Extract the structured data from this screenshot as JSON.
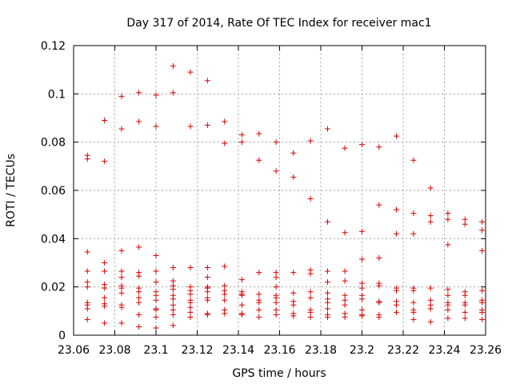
{
  "chart_data": {
    "type": "scatter",
    "title": "Day 317 of 2014, Rate Of TEC Index for receiver mac1",
    "xlabel": "GPS time / hours",
    "ylabel": "ROTI / TECUs",
    "xlim": [
      23.06,
      23.26
    ],
    "ylim": [
      0,
      0.12
    ],
    "x_ticks": [
      23.06,
      23.08,
      23.1,
      23.12,
      23.14,
      23.16,
      23.18,
      23.2,
      23.22,
      23.24,
      23.26
    ],
    "x_tick_labels": [
      "23.06",
      "23.08",
      "23.1",
      "23.12",
      "23.14",
      "23.16",
      "23.18",
      "23.2",
      "23.22",
      "23.24",
      "23.26"
    ],
    "y_ticks": [
      0,
      0.02,
      0.04,
      0.06,
      0.08,
      0.1,
      0.12
    ],
    "y_tick_labels": [
      "0",
      "0.02",
      "0.04",
      "0.06",
      "0.08",
      "0.1",
      "0.12"
    ],
    "grid": true,
    "marker": "plus",
    "color": "#dd0000",
    "series": [
      {
        "name": "ROTI",
        "points": [
          [
            23.0667,
            0.0745
          ],
          [
            23.0667,
            0.073
          ],
          [
            23.0667,
            0.0345
          ],
          [
            23.0667,
            0.0265
          ],
          [
            23.0667,
            0.022
          ],
          [
            23.0667,
            0.02
          ],
          [
            23.0667,
            0.0135
          ],
          [
            23.0667,
            0.0125
          ],
          [
            23.0667,
            0.011
          ],
          [
            23.0667,
            0.0065
          ],
          [
            23.075,
            0.089
          ],
          [
            23.075,
            0.072
          ],
          [
            23.075,
            0.03
          ],
          [
            23.075,
            0.0265
          ],
          [
            23.075,
            0.021
          ],
          [
            23.075,
            0.0195
          ],
          [
            23.075,
            0.0155
          ],
          [
            23.075,
            0.013
          ],
          [
            23.075,
            0.012
          ],
          [
            23.075,
            0.005
          ],
          [
            23.0833,
            0.099
          ],
          [
            23.0833,
            0.0855
          ],
          [
            23.0833,
            0.035
          ],
          [
            23.0833,
            0.0265
          ],
          [
            23.0833,
            0.024
          ],
          [
            23.0833,
            0.0205
          ],
          [
            23.0833,
            0.0195
          ],
          [
            23.0833,
            0.0175
          ],
          [
            23.0833,
            0.0125
          ],
          [
            23.0833,
            0.0115
          ],
          [
            23.0833,
            0.005
          ],
          [
            23.0917,
            0.1005
          ],
          [
            23.0917,
            0.0885
          ],
          [
            23.0917,
            0.0365
          ],
          [
            23.0917,
            0.026
          ],
          [
            23.0917,
            0.0245
          ],
          [
            23.0917,
            0.0195
          ],
          [
            23.0917,
            0.018
          ],
          [
            23.0917,
            0.0155
          ],
          [
            23.0917,
            0.0135
          ],
          [
            23.0917,
            0.0085
          ],
          [
            23.0917,
            0.0035
          ],
          [
            23.1,
            0.0995
          ],
          [
            23.1,
            0.0865
          ],
          [
            23.1,
            0.033
          ],
          [
            23.1,
            0.0265
          ],
          [
            23.1,
            0.022
          ],
          [
            23.1,
            0.018
          ],
          [
            23.1,
            0.0165
          ],
          [
            23.1,
            0.0145
          ],
          [
            23.1,
            0.011
          ],
          [
            23.1,
            0.0105
          ],
          [
            23.1,
            0.0075
          ],
          [
            23.1,
            0.003
          ],
          [
            23.1083,
            0.1115
          ],
          [
            23.1083,
            0.1005
          ],
          [
            23.1083,
            0.028
          ],
          [
            23.1083,
            0.0225
          ],
          [
            23.1083,
            0.0205
          ],
          [
            23.1083,
            0.019
          ],
          [
            23.1083,
            0.0165
          ],
          [
            23.1083,
            0.015
          ],
          [
            23.1083,
            0.0125
          ],
          [
            23.1083,
            0.0105
          ],
          [
            23.1083,
            0.0085
          ],
          [
            23.1083,
            0.004
          ],
          [
            23.1167,
            0.109
          ],
          [
            23.1167,
            0.0865
          ],
          [
            23.1167,
            0.028
          ],
          [
            23.1167,
            0.02
          ],
          [
            23.1167,
            0.0185
          ],
          [
            23.1167,
            0.017
          ],
          [
            23.1167,
            0.0145
          ],
          [
            23.1167,
            0.0135
          ],
          [
            23.1167,
            0.0115
          ],
          [
            23.1167,
            0.0095
          ],
          [
            23.1167,
            0.0075
          ],
          [
            23.125,
            0.1055
          ],
          [
            23.125,
            0.087
          ],
          [
            23.125,
            0.028
          ],
          [
            23.125,
            0.024
          ],
          [
            23.125,
            0.02
          ],
          [
            23.125,
            0.0195
          ],
          [
            23.125,
            0.018
          ],
          [
            23.125,
            0.0155
          ],
          [
            23.125,
            0.0145
          ],
          [
            23.125,
            0.009
          ],
          [
            23.125,
            0.0085
          ],
          [
            23.1333,
            0.0885
          ],
          [
            23.1333,
            0.0795
          ],
          [
            23.1333,
            0.0285
          ],
          [
            23.1333,
            0.0205
          ],
          [
            23.1333,
            0.0185
          ],
          [
            23.1333,
            0.017
          ],
          [
            23.1333,
            0.0145
          ],
          [
            23.1333,
            0.0105
          ],
          [
            23.1333,
            0.009
          ],
          [
            23.1417,
            0.083
          ],
          [
            23.1417,
            0.08
          ],
          [
            23.1417,
            0.023
          ],
          [
            23.1417,
            0.018
          ],
          [
            23.1417,
            0.017
          ],
          [
            23.1417,
            0.0165
          ],
          [
            23.1417,
            0.0125
          ],
          [
            23.1417,
            0.009
          ],
          [
            23.1417,
            0.0085
          ],
          [
            23.15,
            0.0835
          ],
          [
            23.15,
            0.0725
          ],
          [
            23.15,
            0.026
          ],
          [
            23.15,
            0.017
          ],
          [
            23.15,
            0.0145
          ],
          [
            23.15,
            0.0135
          ],
          [
            23.15,
            0.0105
          ],
          [
            23.15,
            0.0075
          ],
          [
            23.1583,
            0.08
          ],
          [
            23.1583,
            0.068
          ],
          [
            23.1583,
            0.026
          ],
          [
            23.1583,
            0.024
          ],
          [
            23.1583,
            0.02
          ],
          [
            23.1583,
            0.0165
          ],
          [
            23.1583,
            0.0155
          ],
          [
            23.1583,
            0.0135
          ],
          [
            23.1583,
            0.0105
          ],
          [
            23.1583,
            0.0085
          ],
          [
            23.1667,
            0.0755
          ],
          [
            23.1667,
            0.0655
          ],
          [
            23.1667,
            0.026
          ],
          [
            23.1667,
            0.0175
          ],
          [
            23.1667,
            0.014
          ],
          [
            23.1667,
            0.0125
          ],
          [
            23.1667,
            0.009
          ],
          [
            23.1667,
            0.008
          ],
          [
            23.175,
            0.0805
          ],
          [
            23.175,
            0.0565
          ],
          [
            23.175,
            0.027
          ],
          [
            23.175,
            0.0255
          ],
          [
            23.175,
            0.018
          ],
          [
            23.175,
            0.0155
          ],
          [
            23.175,
            0.0105
          ],
          [
            23.175,
            0.0095
          ],
          [
            23.175,
            0.0075
          ],
          [
            23.1833,
            0.0855
          ],
          [
            23.1833,
            0.047
          ],
          [
            23.1833,
            0.0265
          ],
          [
            23.1833,
            0.022
          ],
          [
            23.1833,
            0.0175
          ],
          [
            23.1833,
            0.015
          ],
          [
            23.1833,
            0.0135
          ],
          [
            23.1833,
            0.011
          ],
          [
            23.1833,
            0.0085
          ],
          [
            23.1833,
            0.0075
          ],
          [
            23.1917,
            0.0775
          ],
          [
            23.1917,
            0.0425
          ],
          [
            23.1917,
            0.0265
          ],
          [
            23.1917,
            0.0225
          ],
          [
            23.1917,
            0.0165
          ],
          [
            23.1917,
            0.0145
          ],
          [
            23.1917,
            0.0125
          ],
          [
            23.1917,
            0.009
          ],
          [
            23.1917,
            0.0075
          ],
          [
            23.2,
            0.079
          ],
          [
            23.2,
            0.043
          ],
          [
            23.2,
            0.0315
          ],
          [
            23.2,
            0.0215
          ],
          [
            23.2,
            0.0195
          ],
          [
            23.2,
            0.0165
          ],
          [
            23.2,
            0.015
          ],
          [
            23.2,
            0.0105
          ],
          [
            23.2,
            0.0085
          ],
          [
            23.2,
            0.008
          ],
          [
            23.2083,
            0.078
          ],
          [
            23.2083,
            0.054
          ],
          [
            23.2083,
            0.032
          ],
          [
            23.2083,
            0.0215
          ],
          [
            23.2083,
            0.0205
          ],
          [
            23.2083,
            0.014
          ],
          [
            23.2083,
            0.0135
          ],
          [
            23.2083,
            0.0085
          ],
          [
            23.2083,
            0.0075
          ],
          [
            23.2167,
            0.0825
          ],
          [
            23.2167,
            0.052
          ],
          [
            23.2167,
            0.042
          ],
          [
            23.2167,
            0.0195
          ],
          [
            23.2167,
            0.0185
          ],
          [
            23.2167,
            0.014
          ],
          [
            23.2167,
            0.0125
          ],
          [
            23.2167,
            0.0095
          ],
          [
            23.225,
            0.0725
          ],
          [
            23.225,
            0.0505
          ],
          [
            23.225,
            0.042
          ],
          [
            23.225,
            0.0195
          ],
          [
            23.225,
            0.0185
          ],
          [
            23.225,
            0.0135
          ],
          [
            23.225,
            0.0105
          ],
          [
            23.225,
            0.0095
          ],
          [
            23.225,
            0.0065
          ],
          [
            23.2333,
            0.061
          ],
          [
            23.2333,
            0.0495
          ],
          [
            23.2333,
            0.047
          ],
          [
            23.2333,
            0.0195
          ],
          [
            23.2333,
            0.0145
          ],
          [
            23.2333,
            0.0125
          ],
          [
            23.2333,
            0.011
          ],
          [
            23.2333,
            0.0055
          ],
          [
            23.2417,
            0.0505
          ],
          [
            23.2417,
            0.048
          ],
          [
            23.2417,
            0.0375
          ],
          [
            23.2417,
            0.019
          ],
          [
            23.2417,
            0.0165
          ],
          [
            23.2417,
            0.0135
          ],
          [
            23.2417,
            0.0125
          ],
          [
            23.2417,
            0.0105
          ],
          [
            23.2417,
            0.007
          ],
          [
            23.25,
            0.048
          ],
          [
            23.25,
            0.046
          ],
          [
            23.25,
            0.018
          ],
          [
            23.25,
            0.0165
          ],
          [
            23.25,
            0.0135
          ],
          [
            23.25,
            0.0125
          ],
          [
            23.25,
            0.0095
          ],
          [
            23.25,
            0.007
          ],
          [
            23.2583,
            0.047
          ],
          [
            23.2583,
            0.0435
          ],
          [
            23.2583,
            0.035
          ],
          [
            23.2583,
            0.0185
          ],
          [
            23.2583,
            0.0145
          ],
          [
            23.2583,
            0.0135
          ],
          [
            23.2583,
            0.0105
          ],
          [
            23.2583,
            0.0095
          ],
          [
            23.2583,
            0.0065
          ]
        ]
      }
    ]
  }
}
